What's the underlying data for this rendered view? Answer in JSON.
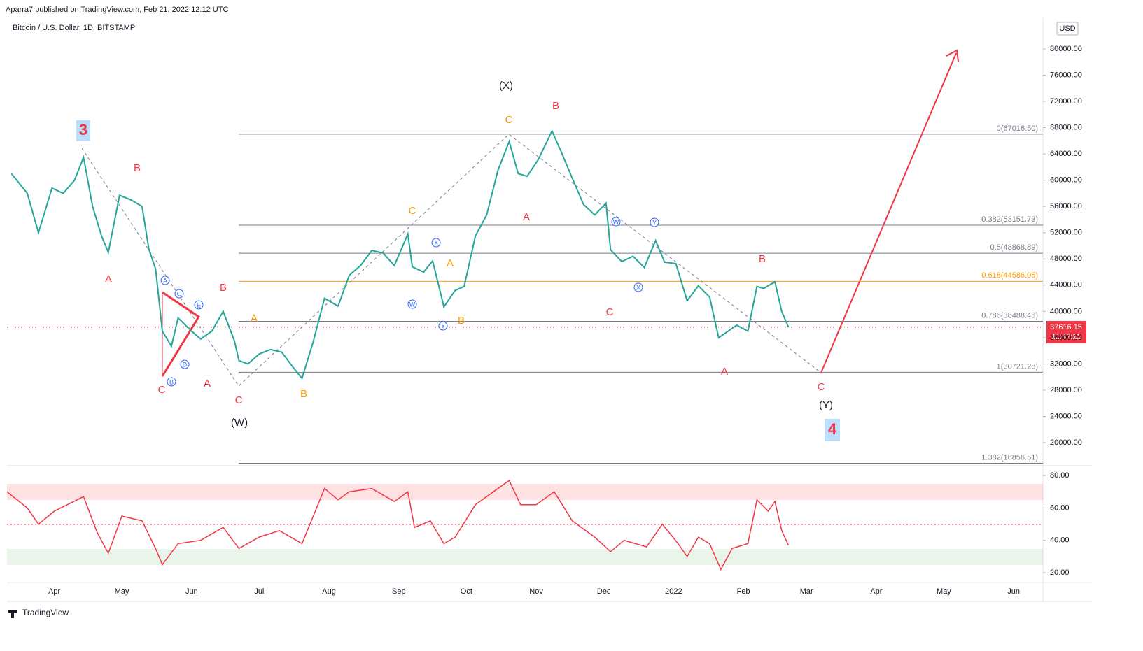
{
  "header": {
    "byline": "Aparra7 published on TradingView.com, Feb 21, 2022 12:12 UTC"
  },
  "footer": {
    "brand": "TradingView"
  },
  "annotations": [
    "3",
    "B",
    "A",
    "C",
    "A",
    "B",
    "C",
    "(W)",
    "A",
    "B",
    "C",
    "A",
    "B",
    "(X)",
    "C",
    "B",
    "A",
    "C",
    "B",
    "A",
    "C",
    "(Y)",
    "4",
    "A",
    "B",
    "C",
    "D",
    "E",
    "W",
    "X",
    "Y",
    "W",
    "X",
    "Y"
  ],
  "chart_data": [
    {
      "type": "line",
      "title": "Bitcoin / U.S. Dollar, 1D, BITSTAMP",
      "currency": "USD",
      "color": "#26a69a",
      "x": [
        "2021-03-13",
        "2021-03-20",
        "2021-03-25",
        "2021-03-31",
        "2021-04-05",
        "2021-04-10",
        "2021-04-14",
        "2021-04-18",
        "2021-04-22",
        "2021-04-25",
        "2021-04-30",
        "2021-05-05",
        "2021-05-10",
        "2021-05-13",
        "2021-05-16",
        "2021-05-19",
        "2021-05-23",
        "2021-05-26",
        "2021-05-31",
        "2021-06-05",
        "2021-06-10",
        "2021-06-15",
        "2021-06-20",
        "2021-06-22",
        "2021-06-26",
        "2021-07-01",
        "2021-07-06",
        "2021-07-11",
        "2021-07-16",
        "2021-07-20",
        "2021-07-25",
        "2021-07-30",
        "2021-08-05",
        "2021-08-10",
        "2021-08-15",
        "2021-08-20",
        "2021-08-25",
        "2021-08-30",
        "2021-09-05",
        "2021-09-07",
        "2021-09-12",
        "2021-09-16",
        "2021-09-21",
        "2021-09-26",
        "2021-09-30",
        "2021-10-05",
        "2021-10-10",
        "2021-10-15",
        "2021-10-20",
        "2021-10-24",
        "2021-10-28",
        "2021-11-02",
        "2021-11-08",
        "2021-11-12",
        "2021-11-17",
        "2021-11-22",
        "2021-11-27",
        "2021-12-02",
        "2021-12-04",
        "2021-12-09",
        "2021-12-14",
        "2021-12-19",
        "2021-12-24",
        "2021-12-28",
        "2022-01-02",
        "2022-01-07",
        "2022-01-12",
        "2022-01-17",
        "2022-01-21",
        "2022-01-24",
        "2022-01-29",
        "2022-02-03",
        "2022-02-07",
        "2022-02-10",
        "2022-02-15",
        "2022-02-18",
        "2022-02-20",
        "2022-02-21"
      ],
      "values": [
        61000,
        58000,
        52000,
        58800,
        58000,
        60000,
        63500,
        56000,
        51500,
        49000,
        57700,
        57000,
        56000,
        49500,
        46500,
        37000,
        34700,
        39000,
        37300,
        35800,
        37000,
        40000,
        35500,
        32500,
        32000,
        33500,
        34200,
        33800,
        31500,
        29800,
        35400,
        42000,
        40800,
        45500,
        47000,
        49300,
        48900,
        47000,
        51800,
        46800,
        46000,
        47700,
        40700,
        43200,
        43800,
        51500,
        54700,
        61500,
        65900,
        61000,
        60600,
        63200,
        67500,
        64400,
        60300,
        56300,
        54700,
        56500,
        49400,
        47600,
        48400,
        46700,
        50800,
        47500,
        47300,
        41600,
        43900,
        42200,
        36000,
        36700,
        37900,
        37000,
        43800,
        43500,
        44500,
        40000,
        38400,
        37616.15
      ],
      "xlim": [
        "2021-03-11",
        "2022-06-14"
      ],
      "xticks": [
        {
          "value": "2021-04-01",
          "label": "Apr"
        },
        {
          "value": "2021-05-01",
          "label": "May"
        },
        {
          "value": "2021-06-01",
          "label": "Jun"
        },
        {
          "value": "2021-07-01",
          "label": "Jul"
        },
        {
          "value": "2021-08-01",
          "label": "Aug"
        },
        {
          "value": "2021-09-01",
          "label": "Sep"
        },
        {
          "value": "2021-10-01",
          "label": "Oct"
        },
        {
          "value": "2021-11-01",
          "label": "Nov"
        },
        {
          "value": "2021-12-01",
          "label": "Dec"
        },
        {
          "value": "2022-01-01",
          "label": "2022"
        },
        {
          "value": "2022-02-01",
          "label": "Feb"
        },
        {
          "value": "2022-03-01",
          "label": "Mar"
        },
        {
          "value": "2022-04-01",
          "label": "Apr"
        },
        {
          "value": "2022-05-01",
          "label": "May"
        },
        {
          "value": "2022-06-01",
          "label": "Jun"
        }
      ],
      "ylim": [
        16590,
        84800
      ],
      "yticks": [
        {
          "value": 20000,
          "label": "20000.00"
        },
        {
          "value": 24000,
          "label": "24000.00"
        },
        {
          "value": 28000,
          "label": "28000.00"
        },
        {
          "value": 32000,
          "label": "32000.00"
        },
        {
          "value": 36000,
          "label": "36000.00"
        },
        {
          "value": 40000,
          "label": "40000.00"
        },
        {
          "value": 44000,
          "label": "44000.00"
        },
        {
          "value": 48000,
          "label": "48000.00"
        },
        {
          "value": 52000,
          "label": "52000.00"
        },
        {
          "value": 56000,
          "label": "56000.00"
        },
        {
          "value": 60000,
          "label": "60000.00"
        },
        {
          "value": 64000,
          "label": "64000.00"
        },
        {
          "value": 68000,
          "label": "68000.00"
        },
        {
          "value": 72000,
          "label": "72000.00"
        },
        {
          "value": 76000,
          "label": "76000.00"
        },
        {
          "value": 80000,
          "label": "80000.00"
        }
      ],
      "fib_levels": [
        {
          "value": 67016.5,
          "label": "0(67016.50)",
          "color": "#787b86"
        },
        {
          "value": 53151.73,
          "label": "0.382(53151.73)",
          "color": "#787b86"
        },
        {
          "value": 48868.89,
          "label": "0.5(48868.89)",
          "color": "#787b86"
        },
        {
          "value": 44586.05,
          "label": "0.618(44586.05)",
          "color": "#ff9800"
        },
        {
          "value": 38488.46,
          "label": "0.786(38488.46)",
          "color": "#787b86"
        },
        {
          "value": 30721.28,
          "label": "1(30721.28)",
          "color": "#787b86"
        },
        {
          "value": 16856.51,
          "label": "1.382(16856.51)",
          "color": "#787b86"
        }
      ],
      "last_price": 37616.15,
      "countdown": "11:47:11"
    },
    {
      "type": "line",
      "color": "#f23645",
      "x": [
        "2021-03-11",
        "2021-03-20",
        "2021-03-25",
        "2021-04-01",
        "2021-04-14",
        "2021-04-20",
        "2021-04-25",
        "2021-05-01",
        "2021-05-10",
        "2021-05-16",
        "2021-05-19",
        "2021-05-26",
        "2021-06-05",
        "2021-06-15",
        "2021-06-22",
        "2021-07-01",
        "2021-07-10",
        "2021-07-20",
        "2021-07-25",
        "2021-07-30",
        "2021-08-05",
        "2021-08-10",
        "2021-08-20",
        "2021-08-30",
        "2021-09-05",
        "2021-09-08",
        "2021-09-15",
        "2021-09-21",
        "2021-09-26",
        "2021-10-05",
        "2021-10-15",
        "2021-10-20",
        "2021-10-25",
        "2021-11-01",
        "2021-11-09",
        "2021-11-17",
        "2021-11-27",
        "2021-12-04",
        "2021-12-10",
        "2021-12-15",
        "2021-12-20",
        "2021-12-27",
        "2022-01-03",
        "2022-01-07",
        "2022-01-12",
        "2022-01-17",
        "2022-01-22",
        "2022-01-27",
        "2022-02-03",
        "2022-02-07",
        "2022-02-12",
        "2022-02-15",
        "2022-02-18",
        "2022-02-21"
      ],
      "values": [
        70,
        60,
        50,
        58,
        67,
        45,
        32,
        55,
        52,
        35,
        25,
        38,
        40,
        48,
        35,
        42,
        46,
        38,
        55,
        72,
        65,
        70,
        72,
        64,
        70,
        48,
        52,
        38,
        42,
        62,
        72,
        77,
        62,
        62,
        70,
        52,
        42,
        33,
        40,
        38,
        36,
        50,
        38,
        30,
        42,
        38,
        22,
        35,
        38,
        65,
        58,
        64,
        46,
        37
      ],
      "ylim": [
        14.4,
        83.5
      ],
      "yticks": [
        {
          "value": 20,
          "label": "20.00"
        },
        {
          "value": 40,
          "label": "40.00"
        },
        {
          "value": 60,
          "label": "60.00"
        },
        {
          "value": 80,
          "label": "80.00"
        }
      ]
    }
  ]
}
